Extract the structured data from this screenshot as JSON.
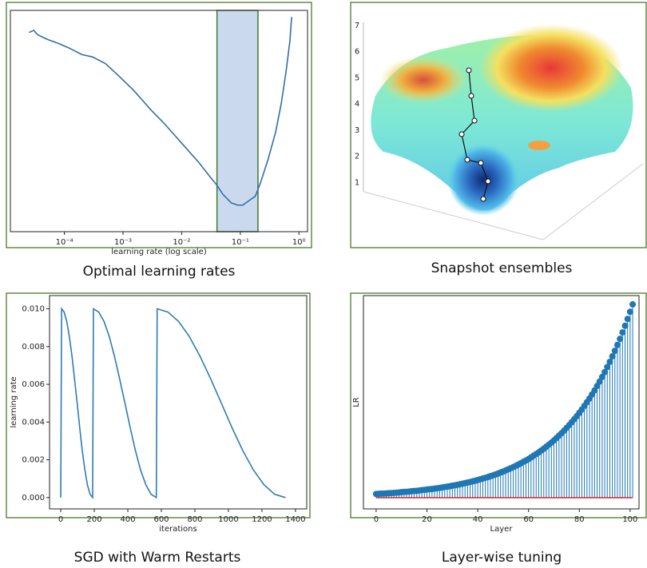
{
  "chart_data": [
    {
      "type": "line",
      "title": "Optimal learning rates",
      "x_label": "learning rate (log scale)",
      "xscale": "log",
      "xlim": [
        1.2e-05,
        1.4
      ],
      "xticks": [
        {
          "value": 0.0001,
          "label": "10⁻⁴"
        },
        {
          "value": 0.001,
          "label": "10⁻³"
        },
        {
          "value": 0.01,
          "label": "10⁻²"
        },
        {
          "value": 0.1,
          "label": "10⁻¹"
        },
        {
          "value": 1,
          "label": "10⁰"
        }
      ],
      "ylim": [
        0,
        1
      ],
      "x": [
        2.5e-05,
        3e-05,
        3.5e-05,
        5e-05,
        8e-05,
        0.00012,
        0.0002,
        0.0003,
        0.0005,
        0.0008,
        0.0015,
        0.003,
        0.005,
        0.01,
        0.02,
        0.03,
        0.04,
        0.05,
        0.07,
        0.09,
        0.11,
        0.14,
        0.18,
        0.22,
        0.3,
        0.4,
        0.5,
        0.6,
        0.7,
        0.75
      ],
      "series": [
        {
          "color": "#2f6fa8",
          "values": [
            0.9,
            0.91,
            0.89,
            0.87,
            0.85,
            0.83,
            0.8,
            0.79,
            0.76,
            0.71,
            0.64,
            0.55,
            0.49,
            0.4,
            0.31,
            0.25,
            0.21,
            0.17,
            0.13,
            0.12,
            0.12,
            0.14,
            0.16,
            0.22,
            0.33,
            0.45,
            0.58,
            0.72,
            0.86,
            0.97
          ]
        }
      ],
      "highlight": {
        "x": [
          0.04,
          0.2
        ],
        "color": "#cbd9ef",
        "edge": "#3d7a2a"
      }
    },
    {
      "type": "surface",
      "title": "Snapshot ensembles",
      "ylim": [
        0,
        7
      ],
      "yticks": [
        1,
        2,
        3,
        4,
        5,
        6,
        7
      ]
    },
    {
      "type": "line",
      "title": "SGD with Warm Restarts",
      "x_label": "iterations",
      "y_label": "learning rate",
      "xlim": [
        -67,
        1467
      ],
      "xticks": [
        0,
        200,
        400,
        600,
        800,
        1000,
        1200,
        1400
      ],
      "ylim": [
        -0.0006,
        0.0107
      ],
      "yticks": [
        {
          "value": 0,
          "label": "0.000"
        },
        {
          "value": 0.002,
          "label": "0.002"
        },
        {
          "value": 0.004,
          "label": "0.004"
        },
        {
          "value": 0.006,
          "label": "0.006"
        },
        {
          "value": 0.008,
          "label": "0.008"
        },
        {
          "value": 0.01,
          "label": "0.010"
        }
      ],
      "x": [
        0,
        5,
        20,
        36,
        51,
        67,
        82,
        98,
        113,
        128,
        144,
        159,
        175,
        190,
        195,
        226,
        258,
        289,
        320,
        351,
        383,
        414,
        445,
        476,
        508,
        539,
        570,
        575,
        639,
        703,
        766,
        830,
        894,
        958,
        1021,
        1085,
        1149,
        1213,
        1276,
        1340
      ],
      "series": [
        {
          "color": "#2f7bb4",
          "values": [
            0,
            0.01,
            0.00983,
            0.00933,
            0.00854,
            0.0075,
            0.00629,
            0.005,
            0.00371,
            0.0025,
            0.00146,
            0.00067,
            0.00017,
            0,
            0.01,
            0.00983,
            0.00933,
            0.00854,
            0.0075,
            0.00629,
            0.005,
            0.00371,
            0.0025,
            0.00146,
            0.00067,
            0.00017,
            0,
            0.01,
            0.00983,
            0.00933,
            0.00854,
            0.0075,
            0.00629,
            0.005,
            0.00371,
            0.0025,
            0.00146,
            0.00067,
            0.00017,
            0
          ]
        }
      ]
    },
    {
      "type": "stem",
      "title": "Layer-wise tuning",
      "x_label": "Layer",
      "y_label": "LR",
      "xlim": [
        -5,
        103.5
      ],
      "xticks": [
        0,
        20,
        40,
        60,
        80,
        100
      ],
      "ylim": [
        -0.061,
        1.098
      ],
      "baseline_color": "#d62728",
      "x": [
        0,
        1,
        2,
        3,
        4,
        5,
        6,
        7,
        8,
        9,
        10,
        11,
        12,
        13,
        14,
        15,
        16,
        17,
        18,
        19,
        20,
        21,
        22,
        23,
        24,
        25,
        26,
        27,
        28,
        29,
        30,
        31,
        32,
        33,
        34,
        35,
        36,
        37,
        38,
        39,
        40,
        41,
        42,
        43,
        44,
        45,
        46,
        47,
        48,
        49,
        50,
        51,
        52,
        53,
        54,
        55,
        56,
        57,
        58,
        59,
        60,
        61,
        62,
        63,
        64,
        65,
        66,
        67,
        68,
        69,
        70,
        71,
        72,
        73,
        74,
        75,
        76,
        77,
        78,
        79,
        80,
        81,
        82,
        83,
        84,
        85,
        86,
        87,
        88,
        89,
        90,
        91,
        92,
        93,
        94,
        95,
        96,
        97,
        98,
        99,
        100,
        101
      ],
      "series": [
        {
          "color": "#1f77b4",
          "values": [
            0.02,
            0.021,
            0.022,
            0.022,
            0.023,
            0.024,
            0.025,
            0.026,
            0.027,
            0.028,
            0.03,
            0.031,
            0.032,
            0.033,
            0.035,
            0.036,
            0.037,
            0.039,
            0.041,
            0.042,
            0.044,
            0.046,
            0.047,
            0.049,
            0.051,
            0.053,
            0.055,
            0.058,
            0.06,
            0.062,
            0.065,
            0.067,
            0.07,
            0.073,
            0.076,
            0.079,
            0.082,
            0.085,
            0.089,
            0.092,
            0.096,
            0.1,
            0.104,
            0.108,
            0.112,
            0.117,
            0.121,
            0.126,
            0.131,
            0.137,
            0.142,
            0.148,
            0.154,
            0.16,
            0.166,
            0.173,
            0.18,
            0.187,
            0.195,
            0.202,
            0.21,
            0.219,
            0.228,
            0.237,
            0.246,
            0.256,
            0.266,
            0.277,
            0.288,
            0.299,
            0.311,
            0.324,
            0.337,
            0.35,
            0.364,
            0.379,
            0.394,
            0.41,
            0.426,
            0.443,
            0.461,
            0.479,
            0.499,
            0.519,
            0.539,
            0.561,
            0.583,
            0.607,
            0.631,
            0.656,
            0.682,
            0.71,
            0.738,
            0.768,
            0.798,
            0.83,
            0.863,
            0.898,
            0.934,
            0.971,
            1.01,
            1.05
          ]
        }
      ]
    }
  ]
}
